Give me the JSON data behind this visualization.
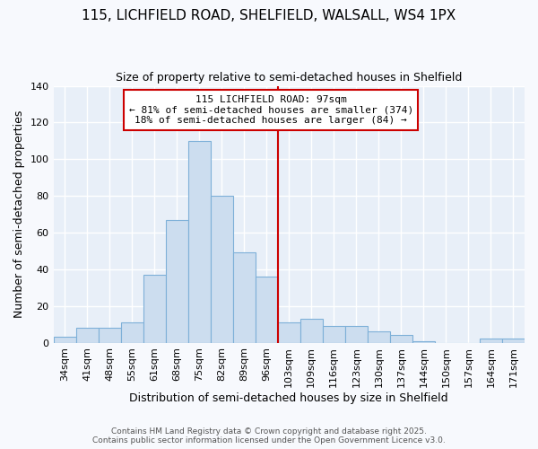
{
  "title": "115, LICHFIELD ROAD, SHELFIELD, WALSALL, WS4 1PX",
  "subtitle": "Size of property relative to semi-detached houses in Shelfield",
  "xlabel": "Distribution of semi-detached houses by size in Shelfield",
  "ylabel": "Number of semi-detached properties",
  "bar_color": "#ccddef",
  "bar_edge_color": "#7eb0d8",
  "fig_bg_color": "#f7f9fd",
  "ax_bg_color": "#e8eff8",
  "grid_color": "#ffffff",
  "categories": [
    "34sqm",
    "41sqm",
    "48sqm",
    "55sqm",
    "61sqm",
    "68sqm",
    "75sqm",
    "82sqm",
    "89sqm",
    "96sqm",
    "103sqm",
    "109sqm",
    "116sqm",
    "123sqm",
    "130sqm",
    "137sqm",
    "144sqm",
    "150sqm",
    "157sqm",
    "164sqm",
    "171sqm"
  ],
  "values": [
    3,
    8,
    8,
    11,
    37,
    67,
    110,
    80,
    49,
    36,
    11,
    13,
    9,
    9,
    6,
    4,
    1,
    0,
    0,
    2,
    2
  ],
  "property_label": "115 LICHFIELD ROAD: 97sqm",
  "annotation_line1": "← 81% of semi-detached houses are smaller (374)",
  "annotation_line2": "18% of semi-detached houses are larger (84) →",
  "red_line_color": "#cc0000",
  "annotation_box_edgecolor": "#cc0000",
  "ylim": [
    0,
    140
  ],
  "yticks": [
    0,
    20,
    40,
    60,
    80,
    100,
    120,
    140
  ],
  "title_fontsize": 11,
  "subtitle_fontsize": 9,
  "tick_fontsize": 8,
  "ylabel_fontsize": 9,
  "xlabel_fontsize": 9,
  "annotation_fontsize": 8,
  "footer_fontsize": 6.5,
  "footer": "Contains HM Land Registry data © Crown copyright and database right 2025.\nContains public sector information licensed under the Open Government Licence v3.0."
}
